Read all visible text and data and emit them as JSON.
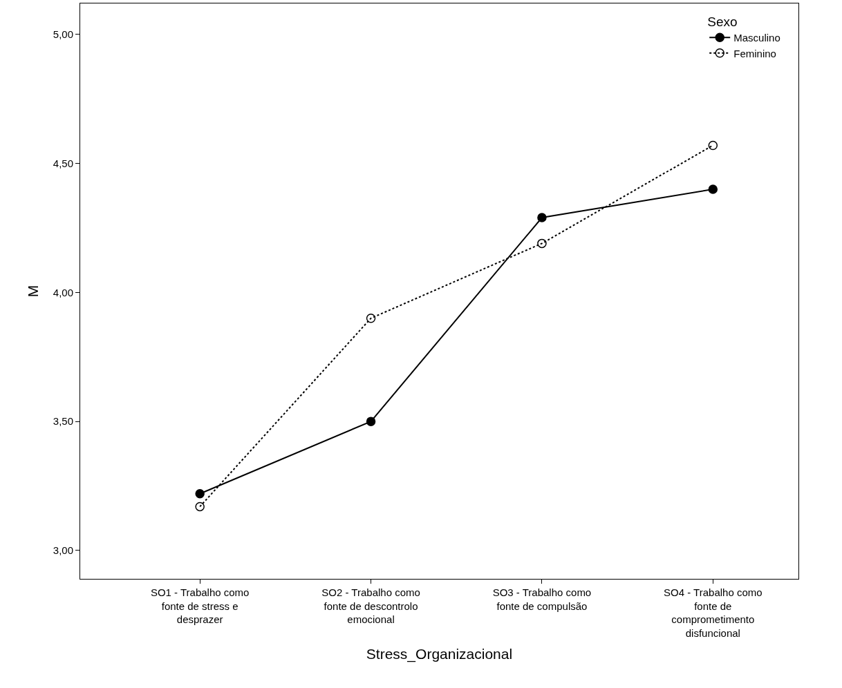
{
  "chart_data": {
    "type": "line",
    "xlabel": "Stress_Organizacional",
    "ylabel": "M",
    "legend_title": "Sexo",
    "categories": [
      "SO1 - Trabalho como fonte de stress e desprazer",
      "SO2 - Trabalho como fonte de descontrolo emocional",
      "SO3 - Trabalho como fonte de compulsão",
      "SO4 - Trabalho como fonte de comprometimento disfuncional"
    ],
    "series": [
      {
        "name": "Masculino",
        "color": "#000000",
        "values": [
          3.22,
          3.5,
          4.29,
          4.4
        ],
        "line_style": "solid",
        "marker": "circle"
      },
      {
        "name": "Feminino",
        "color": "#000000",
        "values": [
          3.17,
          3.9,
          4.19,
          4.57
        ],
        "line_style": "dotted",
        "marker": "circle-open"
      }
    ],
    "ylim": [
      2.89,
      5.12
    ],
    "yticks": [
      {
        "value": 3,
        "label": "3,00"
      },
      {
        "value": 3.5,
        "label": "3,50"
      },
      {
        "value": 4,
        "label": "4,00"
      },
      {
        "value": 4.5,
        "label": "4,50"
      },
      {
        "value": 5,
        "label": "5,00"
      }
    ],
    "legend": "top right"
  }
}
